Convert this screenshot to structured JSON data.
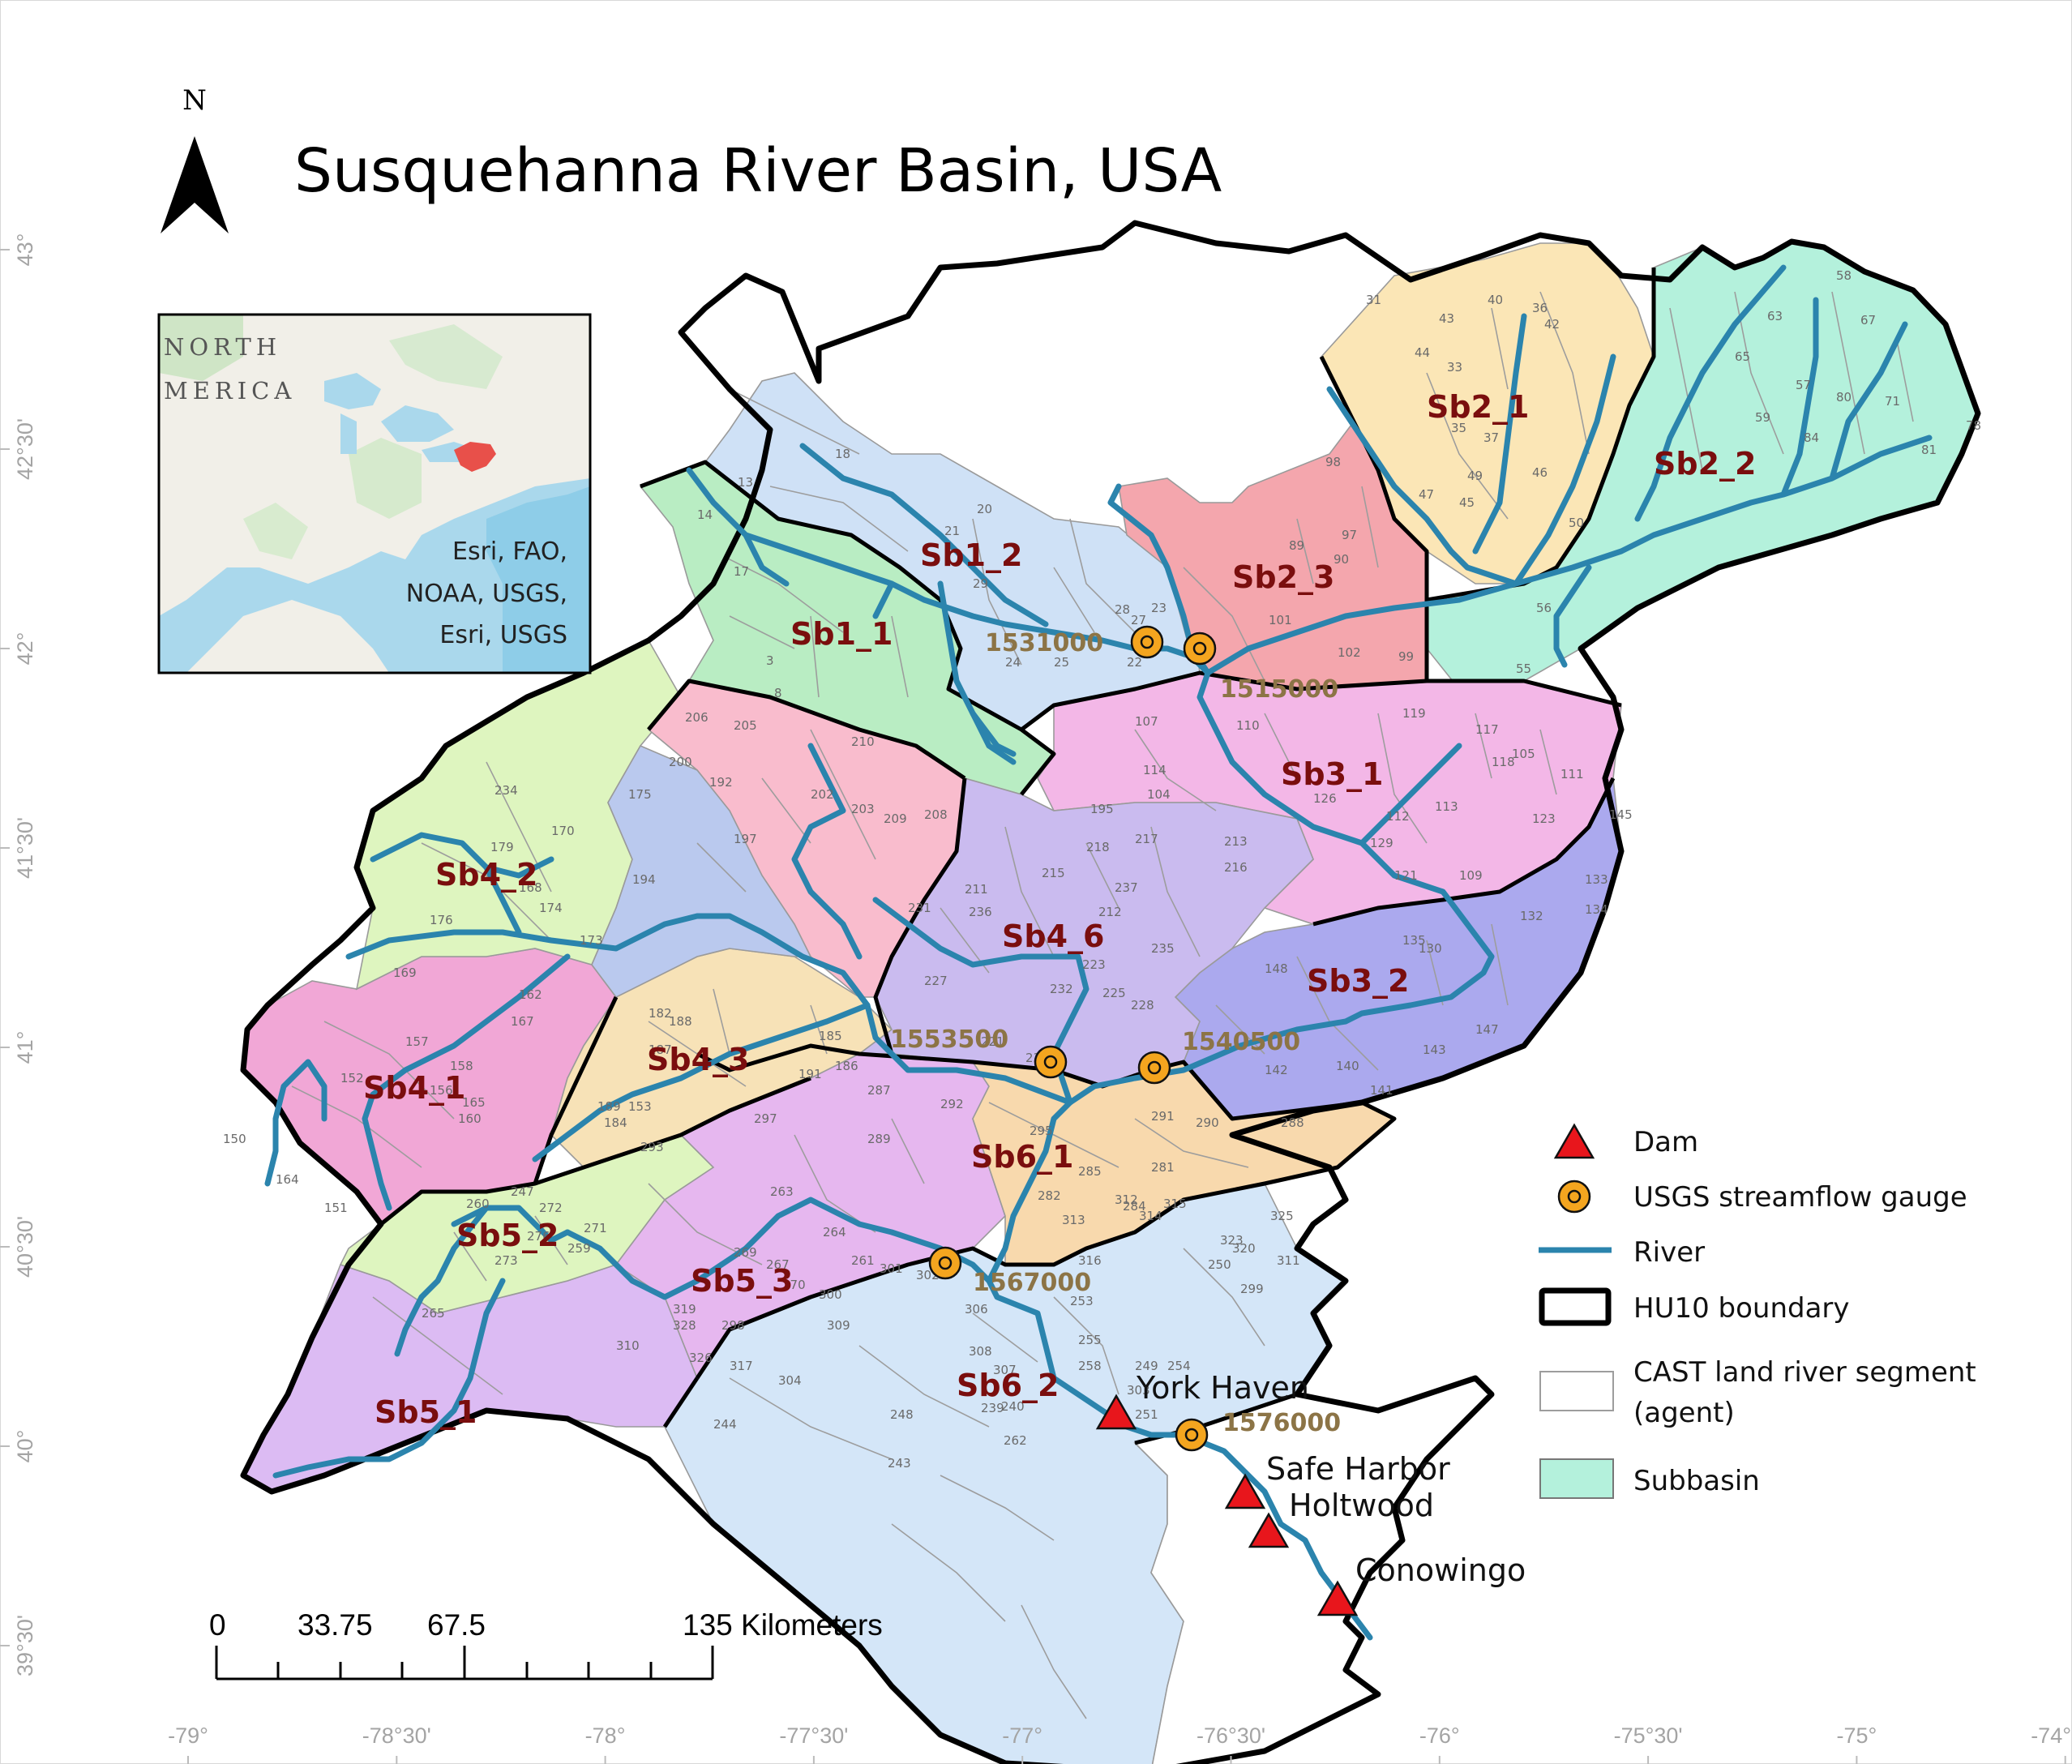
{
  "title": "Susquehanna River Basin, USA",
  "north_arrow": {
    "label": "N",
    "icon": "north-arrow-icon"
  },
  "inset": {
    "label_line1": "NORTH",
    "label_line2": "MERICA",
    "credit_line1": "Esri, FAO,",
    "credit_line2": "NOAA, USGS,",
    "credit_line3": "Esri, USGS",
    "highlight_color": "#e8504a"
  },
  "axes": {
    "longitude_ticks": [
      "-79°",
      "-78°30'",
      "-78°",
      "-77°30'",
      "-77°",
      "-76°30'",
      "-76°",
      "-75°30'",
      "-75°",
      "-74°30'"
    ],
    "latitude_ticks": [
      "43°",
      "42°30'",
      "42°",
      "41°30'",
      "41°",
      "40°30'",
      "40°",
      "39°30'"
    ]
  },
  "subbasins": [
    {
      "id": "Sb1_1",
      "label": "Sb1_1",
      "color": "#b9edc3"
    },
    {
      "id": "Sb1_2",
      "label": "Sb1_2",
      "color": "#cfe1f6"
    },
    {
      "id": "Sb2_1",
      "label": "Sb2_1",
      "color": "#fbe6b6"
    },
    {
      "id": "Sb2_2",
      "label": "Sb2_2",
      "color": "#b4f1dc"
    },
    {
      "id": "Sb2_3",
      "label": "Sb2_3",
      "color": "#f4a6ad"
    },
    {
      "id": "Sb3_1",
      "label": "Sb3_1",
      "color": "#f3b7e7"
    },
    {
      "id": "Sb3_2",
      "label": "Sb3_2",
      "color": "#aba9ee"
    },
    {
      "id": "Sb4_1",
      "label": "Sb4_1",
      "color": "#f1a7d6"
    },
    {
      "id": "Sb4_2",
      "label": "Sb4_2",
      "color": "#def5bf"
    },
    {
      "id": "Sb4_3",
      "label": "Sb4_3",
      "color": "#f7e2b7"
    },
    {
      "id": "Sb4_4",
      "label": "",
      "color": "#f9bccd"
    },
    {
      "id": "Sb4_5",
      "label": "",
      "color": "#bac9ee"
    },
    {
      "id": "Sb4_6",
      "label": "Sb4_6",
      "color": "#cabbef"
    },
    {
      "id": "Sb5_1",
      "label": "Sb5_1",
      "color": "#dcbbf3"
    },
    {
      "id": "Sb5_2",
      "label": "Sb5_2",
      "color": "#def5bf"
    },
    {
      "id": "Sb5_3",
      "label": "Sb5_3",
      "color": "#e6b7ef"
    },
    {
      "id": "Sb6_1",
      "label": "Sb6_1",
      "color": "#f8d9ad"
    },
    {
      "id": "Sb6_2",
      "label": "Sb6_2",
      "color": "#d4e6f8"
    }
  ],
  "gauges": [
    {
      "id": "1531000",
      "label": "1531000"
    },
    {
      "id": "1515000",
      "label": "1515000"
    },
    {
      "id": "1553500",
      "label": "1553500"
    },
    {
      "id": "1540500",
      "label": "1540500"
    },
    {
      "id": "1567000",
      "label": "1567000"
    },
    {
      "id": "1576000",
      "label": "1576000"
    }
  ],
  "dams": [
    {
      "id": "york-haven",
      "label": "York Haven"
    },
    {
      "id": "safe-harbor",
      "label": "Safe Harbor"
    },
    {
      "id": "holtwood",
      "label": "Holtwood"
    },
    {
      "id": "conowingo",
      "label": "Conowingo"
    }
  ],
  "segment_numbers": [
    "18",
    "13",
    "14",
    "17",
    "20",
    "21",
    "29",
    "28",
    "23",
    "22",
    "25",
    "24",
    "27",
    "8",
    "3",
    "31",
    "43",
    "40",
    "36",
    "42",
    "44",
    "33",
    "35",
    "37",
    "47",
    "45",
    "49",
    "46",
    "50",
    "55",
    "56",
    "58",
    "63",
    "67",
    "65",
    "57",
    "59",
    "71",
    "84",
    "80",
    "81",
    "78",
    "98",
    "89",
    "90",
    "97",
    "101",
    "102",
    "99",
    "107",
    "110",
    "119",
    "117",
    "118",
    "105",
    "111",
    "114",
    "104",
    "126",
    "113",
    "112",
    "123",
    "129",
    "121",
    "109",
    "145",
    "133",
    "134",
    "132",
    "130",
    "135",
    "148",
    "147",
    "143",
    "142",
    "141",
    "140",
    "206",
    "205",
    "210",
    "200",
    "202",
    "203",
    "209",
    "208",
    "192",
    "197",
    "194",
    "195",
    "218",
    "217",
    "213",
    "216",
    "215",
    "211",
    "231",
    "237",
    "212",
    "236",
    "235",
    "223",
    "225",
    "228",
    "227",
    "232",
    "221",
    "238",
    "234",
    "175",
    "179",
    "170",
    "168",
    "176",
    "174",
    "173",
    "169",
    "162",
    "167",
    "157",
    "152",
    "158",
    "156",
    "160",
    "165",
    "153",
    "164",
    "151",
    "150",
    "182",
    "187",
    "188",
    "185",
    "186",
    "191",
    "189",
    "184",
    "293",
    "297",
    "287",
    "289",
    "292",
    "295",
    "291",
    "290",
    "288",
    "281",
    "282",
    "284",
    "285",
    "313",
    "314",
    "312",
    "315",
    "316",
    "320",
    "323",
    "325",
    "311",
    "299",
    "250",
    "253",
    "255",
    "258",
    "249",
    "251",
    "254",
    "247",
    "260",
    "272",
    "276",
    "271",
    "259",
    "273",
    "265",
    "269",
    "263",
    "264",
    "261",
    "267",
    "270",
    "328",
    "326",
    "319",
    "317",
    "310",
    "303",
    "298",
    "300",
    "301",
    "302",
    "309",
    "306",
    "308",
    "307",
    "304",
    "239",
    "240",
    "248",
    "262",
    "244",
    "243"
  ],
  "legend": {
    "items": [
      {
        "key": "dam",
        "label": "Dam",
        "color": "#e8161c"
      },
      {
        "key": "gauge",
        "label": "USGS streamflow gauge",
        "color": "#f4a51f"
      },
      {
        "key": "river",
        "label": "River",
        "color": "#2b84ad"
      },
      {
        "key": "hu10",
        "label": "HU10 boundary",
        "color": "#000000"
      },
      {
        "key": "cast",
        "label": "CAST land river segment",
        "label2": "(agent)",
        "color": "#ffffff"
      },
      {
        "key": "subbasin",
        "label": "Subbasin",
        "color": "#b4f1dc"
      }
    ]
  },
  "scale_bar": {
    "labels": [
      "0",
      "33.75",
      "67.5",
      "135 Kilometers"
    ],
    "values": [
      0,
      33.75,
      67.5,
      135
    ]
  }
}
